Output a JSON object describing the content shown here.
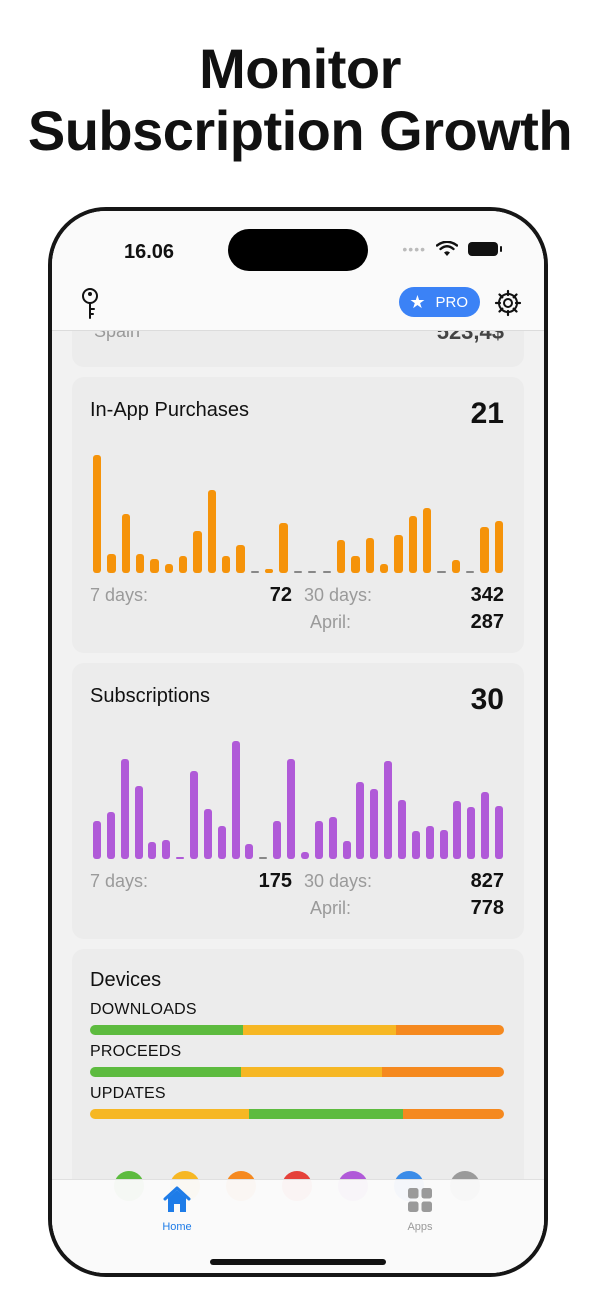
{
  "headline": {
    "line1": "Monitor",
    "line2": "Subscription Growth"
  },
  "status_bar": {
    "time": "16.06",
    "signal_dots": "•••• "
  },
  "nav": {
    "pro_label": "PRO"
  },
  "partial_card": {
    "label": "Spain",
    "value": "523,4$"
  },
  "in_app": {
    "title": "In-App Purchases",
    "total": "21",
    "color": "#f5930a",
    "bar_values": [
      100,
      16,
      50,
      16,
      12,
      8,
      14,
      36,
      70,
      14,
      24,
      1,
      3,
      42,
      1,
      1,
      1,
      28,
      14,
      30,
      8,
      32,
      48,
      55,
      1,
      11,
      1,
      39,
      44
    ],
    "stats": {
      "days7_label": "7 days:",
      "days7_value": "72",
      "days30_label": "30 days:",
      "days30_value": "342",
      "month_label": "April:",
      "month_value": "287"
    }
  },
  "subscriptions": {
    "title": "Subscriptions",
    "total": "30",
    "color": "#b05ad8",
    "bar_values": [
      32,
      40,
      85,
      62,
      14,
      16,
      2,
      75,
      42,
      28,
      100,
      13,
      1,
      32,
      85,
      6,
      32,
      36,
      15,
      65,
      59,
      83,
      50,
      24,
      28,
      25,
      49,
      44,
      57,
      45
    ],
    "stats": {
      "days7_label": "7 days:",
      "days7_value": "175",
      "days30_label": "30 days:",
      "days30_value": "827",
      "month_label": "April:",
      "month_value": "778"
    }
  },
  "devices": {
    "title": "Devices",
    "rows": [
      {
        "label": "DOWNLOADS",
        "segments": [
          {
            "share": 0.37,
            "color": "#5dbb3f"
          },
          {
            "share": 0.37,
            "color": "#f6b724"
          },
          {
            "share": 0.26,
            "color": "#f5891f"
          }
        ]
      },
      {
        "label": "PROCEEDS",
        "segments": [
          {
            "share": 0.365,
            "color": "#5dbb3f"
          },
          {
            "share": 0.34,
            "color": "#f6b724"
          },
          {
            "share": 0.295,
            "color": "#f5891f"
          }
        ]
      },
      {
        "label": "UPDATES",
        "segments": [
          {
            "share": 0.385,
            "color": "#f6b724"
          },
          {
            "share": 0.37,
            "color": "#5dbb3f"
          },
          {
            "share": 0.245,
            "color": "#f5891f"
          }
        ]
      }
    ],
    "legend_colors": [
      "#5dbb3f",
      "#f6b724",
      "#f5891f",
      "#e5413a",
      "#b05ad8",
      "#3b8ce8",
      "#9a9a9a"
    ]
  },
  "tab_bar": {
    "home_label": "Home",
    "apps_label": "Apps",
    "active_color": "#1e7ce8",
    "inactive_color": "#9a9a9a"
  }
}
